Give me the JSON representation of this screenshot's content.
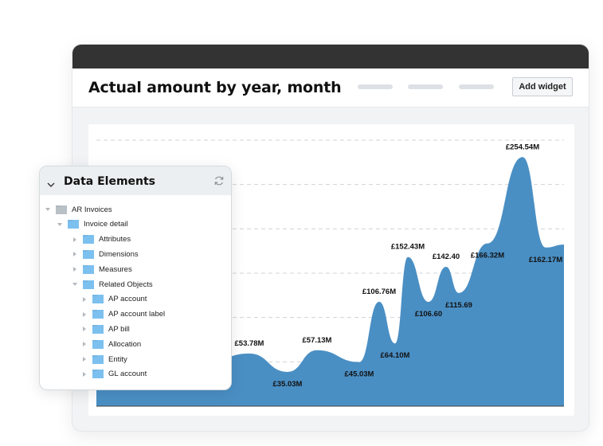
{
  "header": {
    "title": "Actual amount by year, month",
    "add_widget_label": "Add widget",
    "tabs": [
      "",
      "",
      ""
    ]
  },
  "panel": {
    "title": "Data Elements",
    "tree": [
      {
        "label": "AR Invoices",
        "level": 0,
        "expanded": true,
        "folder": "grey"
      },
      {
        "label": "Invoice detail",
        "level": 1,
        "expanded": true,
        "folder": "blue"
      },
      {
        "label": "Attributes",
        "level": 2,
        "expanded": false,
        "folder": "blue"
      },
      {
        "label": "Dimensions",
        "level": 2,
        "expanded": false,
        "folder": "blue"
      },
      {
        "label": "Measures",
        "level": 2,
        "expanded": false,
        "folder": "blue"
      },
      {
        "label": "Related Objects",
        "level": 2,
        "expanded": true,
        "folder": "blue"
      },
      {
        "label": "AP account",
        "level": 3,
        "expanded": false,
        "folder": "blue"
      },
      {
        "label": "AP account label",
        "level": 3,
        "expanded": false,
        "folder": "blue"
      },
      {
        "label": "AP bill",
        "level": 3,
        "expanded": false,
        "folder": "blue"
      },
      {
        "label": "Allocation",
        "level": 3,
        "expanded": false,
        "folder": "blue"
      },
      {
        "label": "Entity",
        "level": 3,
        "expanded": false,
        "folder": "blue"
      },
      {
        "label": "GL account",
        "level": 3,
        "expanded": false,
        "folder": "blue"
      }
    ]
  },
  "chart_data": {
    "type": "area",
    "title": "Actual amount by year, month",
    "ylim": [
      0,
      280
    ],
    "grid": true,
    "color": "#4a8fc4",
    "points": [
      {
        "y": 53.78,
        "label": "£53.78M"
      },
      {
        "y": 35.03,
        "label": "£35.03M"
      },
      {
        "y": 57.13,
        "label": "£57.13M"
      },
      {
        "y": 45.03,
        "label": "£45.03M"
      },
      {
        "y": 106.76,
        "label": "£106.76M"
      },
      {
        "y": 64.1,
        "label": "£64.10M"
      },
      {
        "y": 152.43,
        "label": "£152.43M"
      },
      {
        "y": 106.6,
        "label": "£106.60"
      },
      {
        "y": 142.4,
        "label": "£142.40"
      },
      {
        "y": 115.69,
        "label": "£115.69"
      },
      {
        "y": 166.32,
        "label": "£166.32M"
      },
      {
        "y": 254.54,
        "label": "£254.54M"
      },
      {
        "y": 162.17,
        "label": "£162.17M"
      }
    ]
  },
  "colors": {
    "accent": "#4a8fc4",
    "titlebar": "#333333",
    "folder_blue": "#7cc0ef",
    "folder_grey": "#b9c0c6"
  },
  "icons": {
    "refresh": "refresh-icon",
    "collapse": "chevron-down-icon",
    "folder": "folder-icon"
  }
}
